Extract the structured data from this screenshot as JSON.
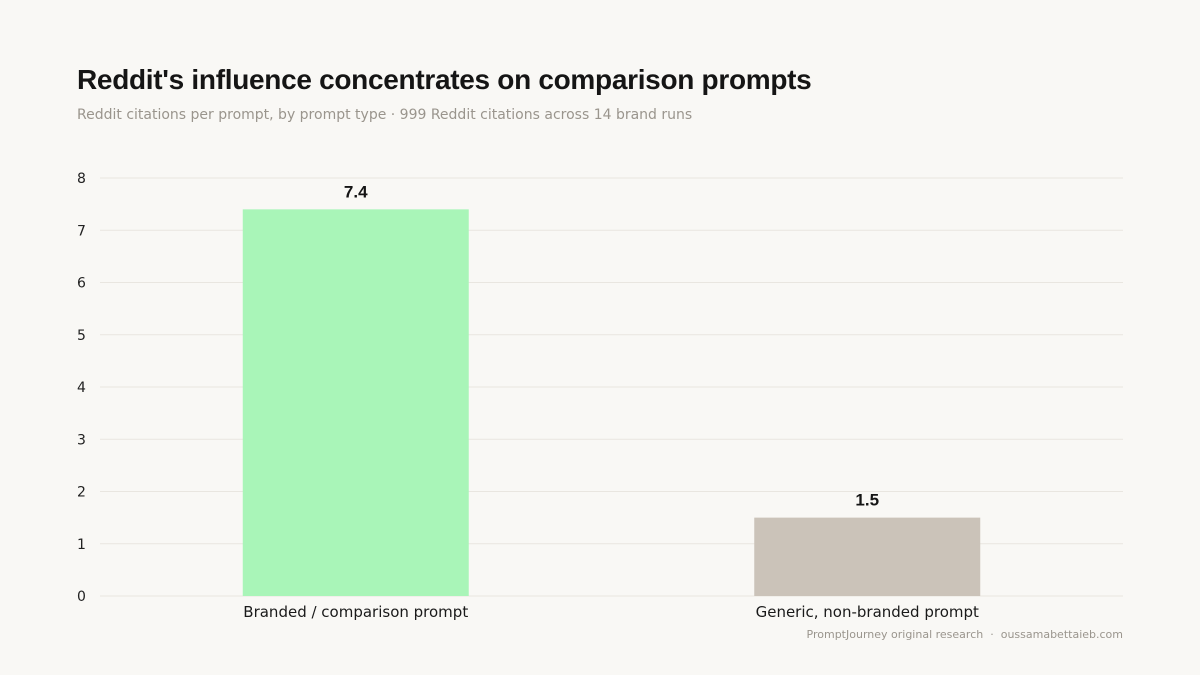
{
  "chart_data": {
    "type": "bar",
    "title": "Reddit's influence concentrates on comparison prompts",
    "subtitle": "Reddit citations per prompt, by prompt type · 999 Reddit citations across 14 brand runs",
    "categories": [
      "Branded / comparison prompt",
      "Generic, non-branded prompt"
    ],
    "values": [
      7.4,
      1.5
    ],
    "value_labels": [
      "7.4",
      "1.5"
    ],
    "bar_colors": [
      "#a9f5b8",
      "#cbc3b9"
    ],
    "xlabel": "",
    "ylabel": "",
    "ylim": [
      0,
      8
    ],
    "yticks": [
      0,
      1,
      2,
      3,
      4,
      5,
      6,
      7,
      8
    ],
    "grid": true,
    "legend": "none"
  },
  "footer": {
    "source": "PromptJourney original research",
    "separator": "·",
    "site": "oussamabettaieb.com"
  },
  "colors": {
    "background": "#f9f8f5",
    "title": "#151515",
    "muted": "#9a958d",
    "grid": "#e9e6e0"
  }
}
